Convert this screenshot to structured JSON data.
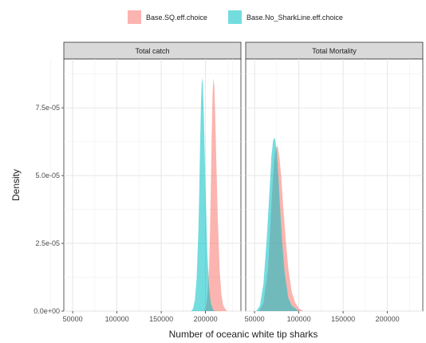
{
  "chart_data": {
    "type": "area",
    "chart_kind": "density",
    "xlabel": "Number of oceanic white tip sharks",
    "ylabel": "Density",
    "xlim": [
      40000,
      240000
    ],
    "ylim": [
      0,
      9.3e-05
    ],
    "x_ticks": [
      50000,
      100000,
      150000,
      200000
    ],
    "x_tick_labels": [
      "50000",
      "100000",
      "150000",
      "200000"
    ],
    "y_ticks": [
      0,
      2.5e-05,
      5e-05,
      7.5e-05
    ],
    "y_tick_labels": [
      "0.0e+00",
      "2.5e-05",
      "5.0e-05",
      "7.5e-05"
    ],
    "grid": true,
    "legend_position": "top",
    "series": [
      {
        "name": "Base.SQ.eff.choice",
        "color": "#F8766D"
      },
      {
        "name": "Base.No_SharkLine.eff.choice",
        "color": "#00BFC4"
      }
    ],
    "panels": [
      {
        "title": "Total catch",
        "densities": [
          {
            "series": "Base.SQ.eff.choice",
            "x": [
              198000,
              200000,
              202000,
              204000,
              205000,
              206000,
              207000,
              208000,
              209000,
              210000,
              211000,
              212000,
              214000,
              216000,
              218000,
              220000,
              222000,
              224000
            ],
            "y": [
              0,
              1e-06,
              5e-06,
              1.6e-05,
              2.8e-05,
              4.5e-05,
              6.5e-05,
              8e-05,
              8.6e-05,
              8.3e-05,
              7.2e-05,
              5.8e-05,
              3.3e-05,
              1.5e-05,
              6e-06,
              2e-06,
              1e-06,
              0
            ]
          },
          {
            "series": "Base.No_SharkLine.eff.choice",
            "x": [
              184000,
              186000,
              188000,
              190000,
              192000,
              193000,
              194000,
              195000,
              196000,
              197000,
              198000,
              199000,
              200000,
              202000,
              204000,
              206000,
              208000,
              210000
            ],
            "y": [
              0,
              1e-06,
              4e-06,
              1.2e-05,
              3e-05,
              4.5e-05,
              6.3e-05,
              7.8e-05,
              8.6e-05,
              8.4e-05,
              7.4e-05,
              6e-05,
              4.6e-05,
              2.2e-05,
              9e-06,
              3e-06,
              1e-06,
              0
            ]
          }
        ]
      },
      {
        "title": "Total Mortality",
        "densities": [
          {
            "series": "Base.SQ.eff.choice",
            "x": [
              55000,
              60000,
              65000,
              68000,
              70000,
              72000,
              74000,
              76000,
              78000,
              80000,
              82000,
              85000,
              88000,
              92000,
              96000,
              100000,
              105000
            ],
            "y": [
              0,
              3e-06,
              1.5e-05,
              3.2e-05,
              4.5e-05,
              5.5e-05,
              6e-05,
              6.1e-05,
              5.7e-05,
              5e-05,
              4e-05,
              2.7e-05,
              1.6e-05,
              7e-06,
              3e-06,
              1e-06,
              0
            ]
          },
          {
            "series": "Base.No_SharkLine.eff.choice",
            "x": [
              52000,
              56000,
              60000,
              64000,
              67000,
              69000,
              71000,
              73000,
              75000,
              77000,
              79000,
              81000,
              84000,
              88000,
              92000,
              96000,
              100000
            ],
            "y": [
              0,
              2e-06,
              1e-05,
              2.8e-05,
              4.5e-05,
              5.7e-05,
              6.3e-05,
              6.4e-05,
              5.9e-05,
              4.9e-05,
              3.7e-05,
              2.6e-05,
              1.4e-05,
              5e-06,
              2e-06,
              1e-06,
              0
            ]
          }
        ]
      }
    ]
  }
}
